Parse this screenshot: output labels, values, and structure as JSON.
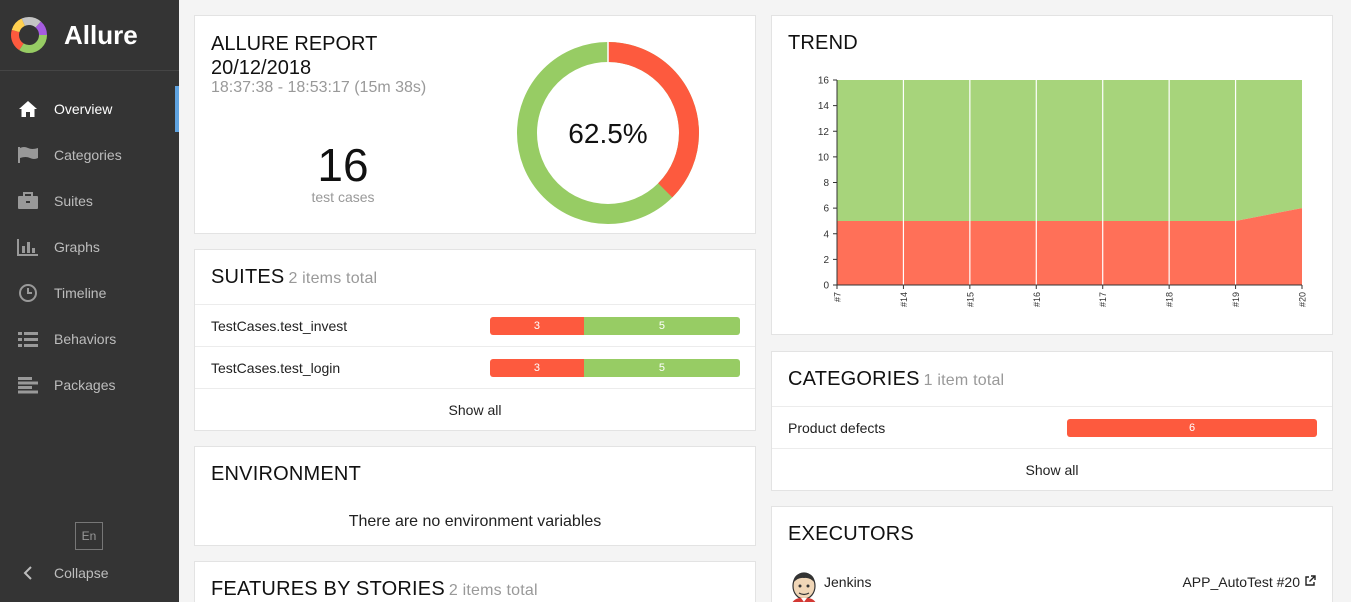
{
  "app": {
    "name": "Allure",
    "logo_colors": [
      "#97cc64",
      "#fd5a3e",
      "#ffd050",
      "#c4c4c4",
      "#a55ce0"
    ]
  },
  "sidebar": {
    "items": [
      {
        "label": "Overview",
        "icon": "home-icon",
        "active": true
      },
      {
        "label": "Categories",
        "icon": "flag-icon",
        "active": false
      },
      {
        "label": "Suites",
        "icon": "briefcase-icon",
        "active": false
      },
      {
        "label": "Graphs",
        "icon": "bar-chart-icon",
        "active": false
      },
      {
        "label": "Timeline",
        "icon": "clock-icon",
        "active": false
      },
      {
        "label": "Behaviors",
        "icon": "list-icon",
        "active": false
      },
      {
        "label": "Packages",
        "icon": "align-left-icon",
        "active": false
      }
    ],
    "language": "En",
    "collapse_label": "Collapse"
  },
  "summary": {
    "title_line1": "ALLURE REPORT",
    "title_line2": "20/12/2018",
    "time_range": "18:37:38 - 18:53:17 (15m 38s)",
    "test_count": "16",
    "test_count_label": "test cases",
    "pass_percent_label": "62.5%",
    "pass_fraction": 0.625,
    "colors": {
      "passed": "#97cc64",
      "failed": "#fd5a3e"
    }
  },
  "suites": {
    "title": "SUITES",
    "subtitle": "2 items total",
    "rows": [
      {
        "name": "TestCases.test_invest",
        "failed": 3,
        "passed": 5
      },
      {
        "name": "TestCases.test_login",
        "failed": 3,
        "passed": 5
      }
    ],
    "show_all": "Show all"
  },
  "environment": {
    "title": "ENVIRONMENT",
    "empty_text": "There are no environment variables"
  },
  "features": {
    "title": "FEATURES BY STORIES",
    "subtitle": "2 items total"
  },
  "trend": {
    "title": "TREND"
  },
  "chart_data": {
    "type": "area",
    "x": [
      "#7",
      "#14",
      "#15",
      "#16",
      "#17",
      "#18",
      "#19",
      "#20"
    ],
    "series": [
      {
        "name": "failed",
        "color": "#ff7058",
        "values": [
          5,
          5,
          5,
          5,
          5,
          5,
          5,
          6
        ]
      },
      {
        "name": "passed",
        "color": "#a7d47b",
        "values": [
          11,
          11,
          11,
          11,
          11,
          11,
          11,
          10
        ]
      }
    ],
    "yticks": [
      0,
      2,
      4,
      6,
      8,
      10,
      12,
      14,
      16
    ],
    "ylim": [
      0,
      16
    ],
    "stacked": true,
    "grid": "vertical"
  },
  "categories": {
    "title": "CATEGORIES",
    "subtitle": "1 item total",
    "rows": [
      {
        "name": "Product defects",
        "count": 6
      }
    ],
    "show_all": "Show all"
  },
  "executors": {
    "title": "EXECUTORS",
    "items": [
      {
        "name": "Jenkins",
        "build": "APP_AutoTest #20",
        "icon": "jenkins-avatar-icon",
        "link_icon": "external-link-icon"
      }
    ]
  }
}
